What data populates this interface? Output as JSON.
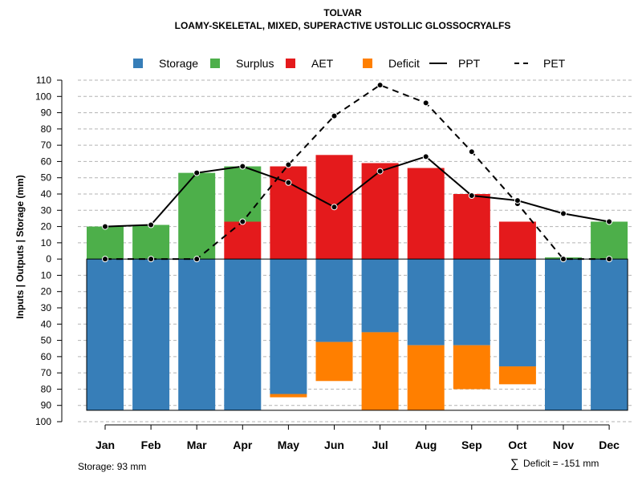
{
  "chart_data": {
    "type": "bar",
    "title": "TOLVAR",
    "subtitle": "LOAMY-SKELETAL, MIXED, SUPERACTIVE USTOLLIC GLOSSOCRYALFS",
    "ylabel": "Inputs | Outputs | Storage    (mm)",
    "categories": [
      "Jan",
      "Feb",
      "Mar",
      "Apr",
      "May",
      "Jun",
      "Jul",
      "Aug",
      "Sep",
      "Oct",
      "Nov",
      "Dec"
    ],
    "ylim": [
      -100,
      110
    ],
    "y_ticks": [
      110,
      100,
      90,
      80,
      70,
      60,
      50,
      40,
      30,
      20,
      10,
      0,
      -10,
      -20,
      -30,
      -40,
      -50,
      -60,
      -70,
      -80,
      -90,
      -100
    ],
    "grid": true,
    "legend": {
      "position": "top",
      "items": [
        {
          "label": "Storage",
          "kind": "square",
          "color": "#377EB8"
        },
        {
          "label": "Surplus",
          "kind": "square",
          "color": "#4DAF4A"
        },
        {
          "label": "AET",
          "kind": "square",
          "color": "#E41A1C"
        },
        {
          "label": "Deficit",
          "kind": "square",
          "color": "#FF7F00"
        },
        {
          "label": "PPT",
          "kind": "solid-line",
          "color": "#000000"
        },
        {
          "label": "PET",
          "kind": "dashed-line",
          "color": "#000000"
        }
      ]
    },
    "colors": {
      "storage": "#377EB8",
      "surplus": "#4DAF4A",
      "aet": "#E41A1C",
      "deficit": "#FF7F00"
    },
    "series": [
      {
        "name": "Storage",
        "values": [
          93,
          93,
          93,
          93,
          83,
          51,
          45,
          53,
          53,
          66,
          93,
          93
        ]
      },
      {
        "name": "Surplus",
        "values": [
          20,
          21,
          53,
          34,
          0,
          0,
          0,
          0,
          0,
          0,
          1,
          23
        ]
      },
      {
        "name": "AET",
        "values": [
          0,
          0,
          0,
          23,
          57,
          64,
          59,
          56,
          40,
          23,
          0,
          0
        ]
      },
      {
        "name": "Deficit",
        "values": [
          0,
          0,
          0,
          0,
          2,
          24,
          48,
          40,
          27,
          11,
          0,
          0
        ]
      },
      {
        "name": "PPT",
        "values": [
          20,
          21,
          53,
          57,
          47,
          32,
          54,
          63,
          39,
          36,
          28,
          23
        ]
      },
      {
        "name": "PET",
        "values": [
          0,
          0,
          0,
          23,
          58,
          88,
          107,
          96,
          66,
          34,
          0,
          0
        ]
      }
    ],
    "storage_capacity": 93
  },
  "footer": {
    "storage_note": "Storage: 93 mm",
    "deficit_symbol": "∑",
    "deficit_note": "Deficit = -151 mm"
  }
}
